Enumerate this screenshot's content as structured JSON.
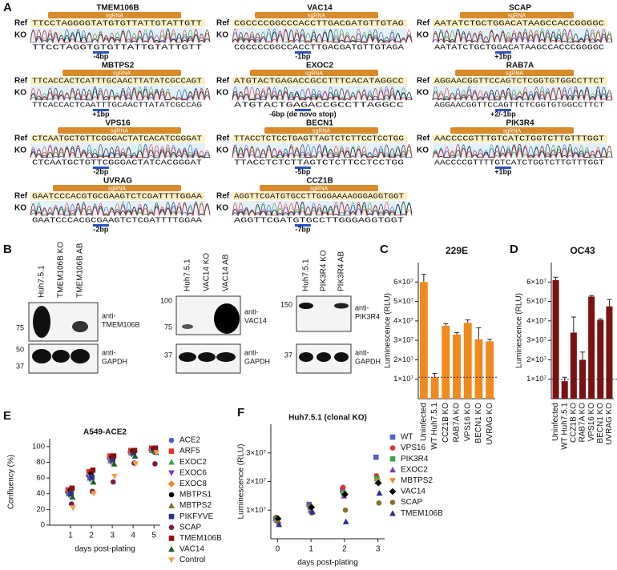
{
  "panel_a": {
    "label": "A",
    "ref_label": "Ref",
    "ko_label": "KO",
    "sgrna_label": "sgRNA",
    "traces": [
      {
        "gene": "TMEM106B",
        "ref": "TTCCTAGGGGTATGTGTTATTGTATTGTT",
        "ko": "TTCCTAGGTGTGTTATTGTATTGTT",
        "note": "-4bp"
      },
      {
        "gene": "VAC14",
        "ref": "CGCCCCGGCCCACCTTGACGATGTTGTAG",
        "ko": "CGCCCCGGCCACCTTGACGATGTTGTAGA",
        "note": "-1bp"
      },
      {
        "gene": "SCAP",
        "ref": "AATATCTGCTGGACATAAGCCACCGGGGC",
        "ko": "AATATCTGCTGGACATAAGCCACCCGGGGC",
        "note": "+1bp"
      },
      {
        "gene": "MBTPS2",
        "ref": "TTCACCACTCATTTGCAACTTATATCGCCAGT",
        "ko": "TTCACCACTCAATTTGCAACTTATATCGCCAG",
        "note": "+1bp"
      },
      {
        "gene": "EXOC2",
        "ref": "ATGTACTGAGACCGCCTTTCACATAGGCC",
        "ko": "ATGTACTGAGACCGCCTTAGGCC",
        "note": "-6bp (de novo stop)"
      },
      {
        "gene": "RAB7A",
        "ref": "AGGAACGGTTCCAGTCTCGGTGTGGCCTTCT",
        "ko": "AGGAACGGTTCCAGTTCTCGGTGTGGCCTTCT",
        "note": "+2/-1bp"
      },
      {
        "gene": "VPS16",
        "ref": "CTCAATGCTGTTCGGGACTATCACATCGGGAT",
        "ko": "CTCAATGCTGTTCGGGACTATCACGGGAT",
        "note": "-2bp"
      },
      {
        "gene": "BECN1",
        "ref": "TTACCTCTCCTGAGTTAGTCTCTTCCTCCTGG",
        "ko": "TTACCTCTCTTAGTCTCTTCCTCCTGG",
        "note": "-5bp"
      },
      {
        "gene": "PIK3R4",
        "ref": "AACCCCGTTTGTCATCTGGTCTTGTTTGGT",
        "ko": "AACCCCGTTTTGTCATCTGGTCTTGTTTGGT",
        "note": "+1bp"
      },
      {
        "gene": "UVRAG",
        "ref": "GAATCCCACGTGCGAAGTCTCGATTTTGGAA",
        "ko": "GAATCCCACGCGAAGTCTCGATTTTGGAA",
        "note": "-2bp"
      },
      {
        "gene": "CCZ1B",
        "ref": "AGGTTCGATGTGCCTTGGGAAAAGGGAGGTGGT",
        "ko": "AGGTTCGATGTGCCTTGGGAGGTGGT",
        "note": "-7bp"
      }
    ]
  },
  "panel_b": {
    "label": "B",
    "blots": [
      {
        "lanes": [
          "Huh7.5.1",
          "TMEM106B KO",
          "TMEM106B AB"
        ],
        "antibodies": [
          [
            "anti-",
            "TMEM106B"
          ],
          [
            "anti-",
            "GAPDH"
          ]
        ],
        "markers": [
          "75",
          "50",
          "37"
        ]
      },
      {
        "lanes": [
          "Huh7.5.1",
          "VAC14 KO",
          "VAC14 AB"
        ],
        "antibodies": [
          [
            "anti-",
            "VAC14"
          ],
          [
            "anti-",
            "GAPDH"
          ]
        ],
        "markers": [
          "100",
          "75",
          "37"
        ]
      },
      {
        "lanes": [
          "Huh7.5.1",
          "PIK3R4 KO",
          "PIK3R4 AB"
        ],
        "antibodies": [
          [
            "anti-",
            "PIK3R4"
          ],
          [
            "anti-",
            "GAPDH"
          ]
        ],
        "markers": [
          "150",
          "37"
        ]
      }
    ]
  },
  "chart_data": [
    {
      "type": "bar",
      "panel": "C",
      "title": "229E",
      "y_label": "Luminescence (RLU)",
      "categories": [
        "Uninfected",
        "WT Huh7.5.1",
        "CCZ1B KO",
        "RAB7A KO",
        "VPS16 KO",
        "BECN1 KO",
        "UVRAG KO"
      ],
      "values": [
        60000000,
        11000000,
        37500000,
        33000000,
        39000000,
        30500000,
        29500000
      ],
      "errors": [
        4000000,
        2000000,
        1000000,
        1000000,
        1500000,
        6000000,
        1000000
      ],
      "color": "#ef8a1f",
      "reference_line": 11000000,
      "ylim": [
        0,
        70000000
      ],
      "yticks": [
        {
          "value": 10000000,
          "label": "1×10⁷"
        },
        {
          "value": 20000000,
          "label": "2×10⁷"
        },
        {
          "value": 30000000,
          "label": "3×10⁷"
        },
        {
          "value": 40000000,
          "label": "4×10⁷"
        },
        {
          "value": 50000000,
          "label": "5×10⁷"
        },
        {
          "value": 60000000,
          "label": "6×10⁷"
        }
      ]
    },
    {
      "type": "bar",
      "panel": "D",
      "title": "OC43",
      "y_label": "Luminescence (RLU)",
      "categories": [
        "Uninfected",
        "WT Huh7.5.1",
        "CCZ1B KO",
        "RAB7A KO",
        "VPS16 KO",
        "BECN1 KO",
        "UVRAG KO"
      ],
      "values": [
        61000000,
        9000000,
        34000000,
        20000000,
        52500000,
        40500000,
        47500000
      ],
      "errors": [
        1500000,
        2000000,
        8000000,
        4000000,
        500000,
        500000,
        3500000
      ],
      "color": "#7a1212",
      "reference_line": 10000000,
      "ylim": [
        0,
        70000000
      ],
      "yticks": [
        {
          "value": 10000000,
          "label": "1×10⁷"
        },
        {
          "value": 20000000,
          "label": "2×10⁷"
        },
        {
          "value": 30000000,
          "label": "3×10⁷"
        },
        {
          "value": 40000000,
          "label": "4×10⁷"
        },
        {
          "value": 50000000,
          "label": "5×10⁷"
        },
        {
          "value": 60000000,
          "label": "6×10⁷"
        }
      ]
    },
    {
      "type": "scatter",
      "panel": "E",
      "title": "A549-ACE2",
      "x_label": "days post-plating",
      "y_label": "Confluency (%)",
      "x": [
        1,
        2,
        3,
        4,
        5
      ],
      "xlim": [
        0,
        5.3
      ],
      "xticks": [
        1,
        2,
        3,
        4,
        5
      ],
      "ylim": [
        0,
        110
      ],
      "yticks": [
        0,
        20,
        40,
        60,
        80,
        100
      ],
      "series": [
        {
          "name": "ACE2",
          "color": "#4e5fc7",
          "marker": "circle",
          "values": [
            42,
            63,
            85,
            93,
            96
          ]
        },
        {
          "name": "ARF5",
          "color": "#e0312b",
          "marker": "square",
          "values": [
            45,
            68,
            88,
            95,
            98
          ]
        },
        {
          "name": "EXOC2",
          "color": "#3aa64a",
          "marker": "triangle-up",
          "values": [
            40,
            60,
            82,
            92,
            95
          ]
        },
        {
          "name": "EXOC6",
          "color": "#7a3fb5",
          "marker": "triangle-down",
          "values": [
            38,
            58,
            80,
            90,
            94
          ]
        },
        {
          "name": "EXOC8",
          "color": "#ef8a1f",
          "marker": "diamond",
          "values": [
            43,
            65,
            85,
            93,
            96
          ]
        },
        {
          "name": "MBTPS1",
          "color": "#000000",
          "marker": "circle",
          "values": [
            44,
            66,
            86,
            94,
            97
          ]
        },
        {
          "name": "MBTPS2",
          "color": "#8b6a2a",
          "marker": "triangle-up",
          "values": [
            41,
            62,
            83,
            92,
            95
          ]
        },
        {
          "name": "PIKFYVE",
          "color": "#2b2f8f",
          "marker": "square",
          "values": [
            40,
            61,
            84,
            92,
            96
          ]
        },
        {
          "name": "SCAP",
          "color": "#7a1a4a",
          "marker": "circle",
          "values": [
            27,
            43,
            55,
            79,
            78
          ]
        },
        {
          "name": "TMEM106B",
          "color": "#8a1010",
          "marker": "square",
          "values": [
            47,
            70,
            88,
            95,
            98
          ]
        },
        {
          "name": "VAC14",
          "color": "#1f5a2a",
          "marker": "triangle-up",
          "values": [
            36,
            55,
            78,
            88,
            93
          ]
        },
        {
          "name": "Control",
          "color": "#f5a04a",
          "marker": "triangle-down",
          "values": [
            22,
            40,
            62,
            78,
            92
          ]
        }
      ]
    },
    {
      "type": "scatter",
      "panel": "F",
      "title": "Huh7.5.1 (clonal KO)",
      "x_label": "days post-plating",
      "y_label": "Luminescence (RLU)",
      "x": [
        0,
        1,
        2,
        3
      ],
      "xlim": [
        -0.2,
        3.2
      ],
      "xticks": [
        0,
        1,
        2,
        3
      ],
      "ylim": [
        0,
        40000000
      ],
      "yticks": [
        {
          "value": 10000000,
          "label": "1×10⁷"
        },
        {
          "value": 20000000,
          "label": "2×10⁷"
        },
        {
          "value": 30000000,
          "label": "3×10⁷"
        }
      ],
      "series": [
        {
          "name": "WT",
          "color": "#4e5fc7",
          "marker": "square",
          "values": [
            7000000,
            12000000,
            17000000,
            28500000
          ]
        },
        {
          "name": "VPS16",
          "color": "#e0312b",
          "marker": "circle",
          "values": [
            7500000,
            11500000,
            18000000,
            22000000
          ]
        },
        {
          "name": "PIK3R4",
          "color": "#3aa64a",
          "marker": "square",
          "values": [
            7000000,
            11000000,
            16000000,
            21000000
          ]
        },
        {
          "name": "EXOC2",
          "color": "#7a3fb5",
          "marker": "triangle-up",
          "values": [
            6500000,
            10000000,
            15000000,
            20000000
          ]
        },
        {
          "name": "MBTPS2",
          "color": "#ef8a1f",
          "marker": "triangle-down",
          "values": [
            6000000,
            10500000,
            15500000,
            20000000
          ]
        },
        {
          "name": "VAC14",
          "color": "#000000",
          "marker": "diamond",
          "values": [
            7000000,
            11000000,
            15500000,
            19500000
          ]
        },
        {
          "name": "SCAP",
          "color": "#8b6a2a",
          "marker": "circle",
          "values": [
            5500000,
            9000000,
            10000000,
            12500000
          ]
        },
        {
          "name": "TMEM106B",
          "color": "#2b2f8f",
          "marker": "triangle-up",
          "values": [
            5000000,
            9500000,
            6000000,
            16000000
          ]
        }
      ]
    }
  ]
}
